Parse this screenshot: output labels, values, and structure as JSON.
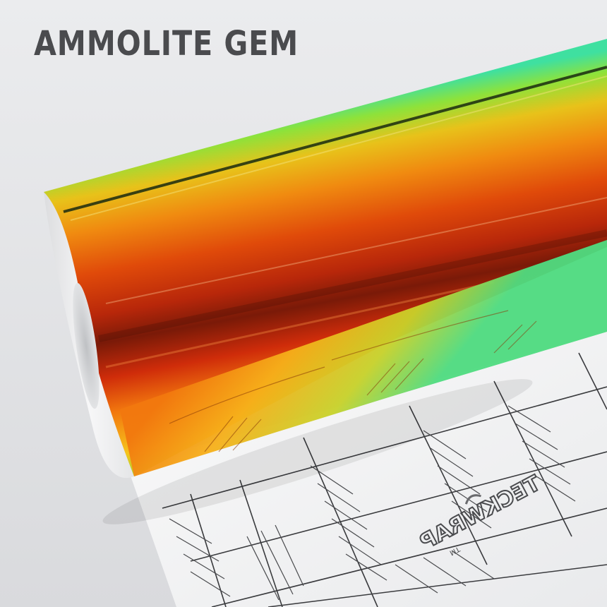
{
  "product": {
    "title": "AMMOLITE GEM",
    "brand_logo_text": "TECKWRAP",
    "trademark": "TM"
  },
  "colors": {
    "background": "#e6e7e9",
    "title": "#4a4b4e",
    "liner": "#f4f4f5",
    "vinyl_gradient": [
      "#3fe0a0",
      "#7fdc3a",
      "#e8c21a",
      "#f08a10",
      "#e04a0a",
      "#b8270a",
      "#7a1a08",
      "#d4300a",
      "#f2780e",
      "#f6c41c",
      "#6fdc40"
    ]
  }
}
